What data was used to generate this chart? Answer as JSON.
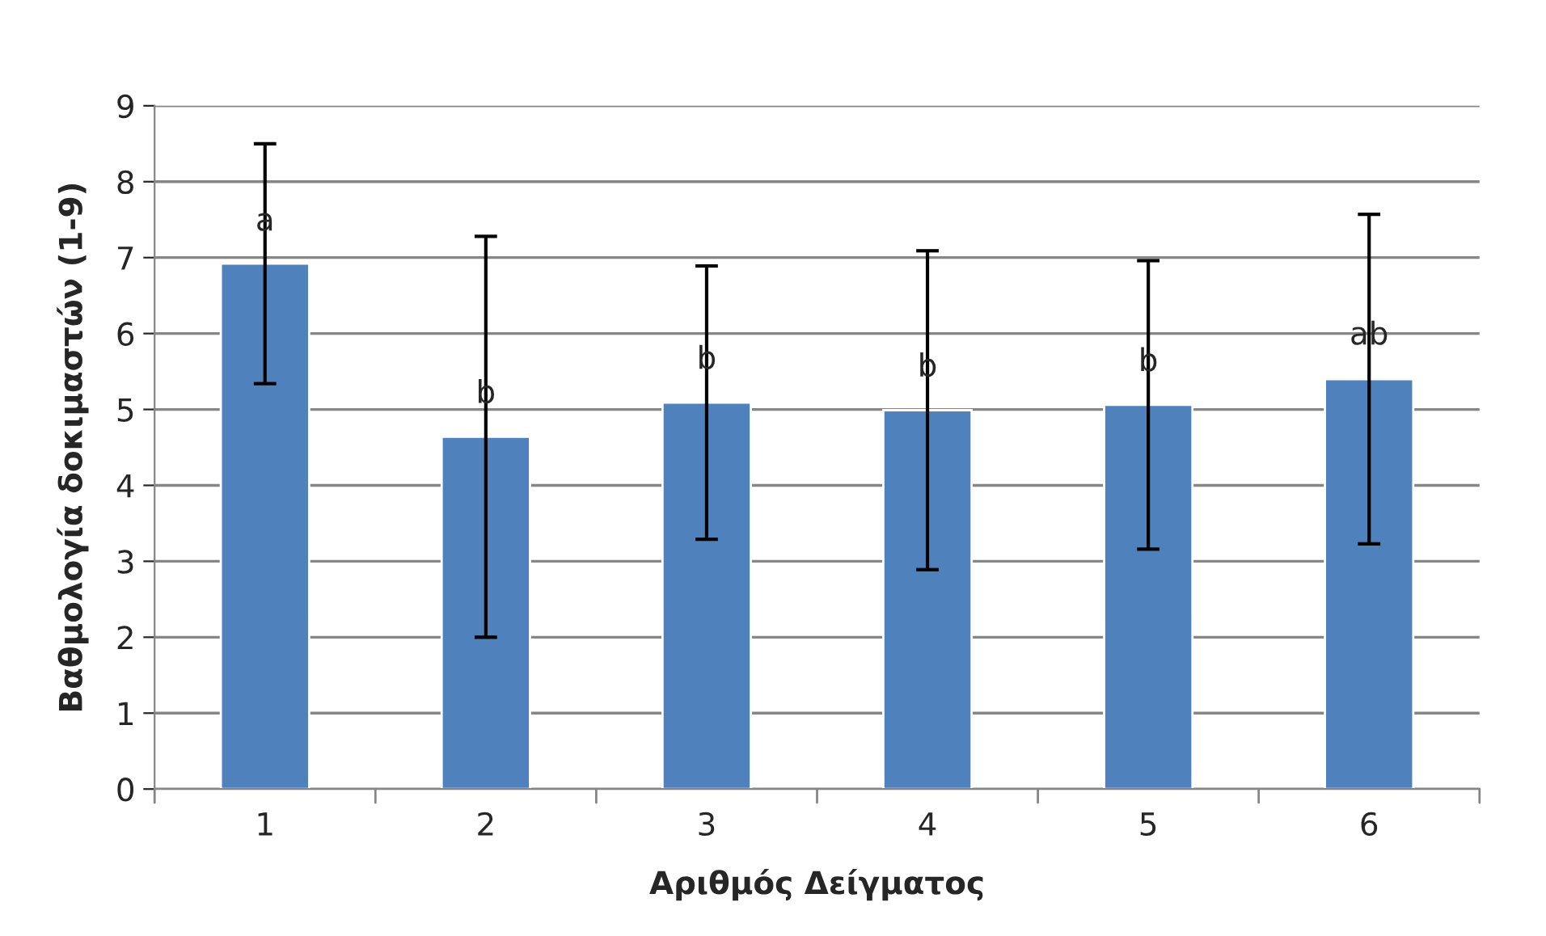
{
  "chart_data": {
    "type": "bar",
    "xlabel": "Αριθμός Δείγματος",
    "ylabel": "Βαθμολογία δοκιμαστών (1-9)",
    "categories": [
      "1",
      "2",
      "3",
      "4",
      "5",
      "6"
    ],
    "values": [
      6.92,
      4.64,
      5.09,
      4.99,
      5.06,
      5.4
    ],
    "errors": [
      1.58,
      2.64,
      1.8,
      2.1,
      1.9,
      2.17
    ],
    "color": "#4f81bd",
    "ylim": [
      0,
      9
    ],
    "yticks": [
      0,
      1,
      2,
      3,
      4,
      5,
      6,
      7,
      8,
      9
    ],
    "grid": "y",
    "annotations": [
      {
        "text": "a",
        "x": "1",
        "y": 7.47
      },
      {
        "text": "b",
        "x": "2",
        "y": 5.2
      },
      {
        "text": "b",
        "x": "3",
        "y": 5.65
      },
      {
        "text": "b",
        "x": "4",
        "y": 5.55
      },
      {
        "text": "b",
        "x": "5",
        "y": 5.62
      },
      {
        "text": "ab",
        "x": "6",
        "y": 5.97
      }
    ]
  }
}
